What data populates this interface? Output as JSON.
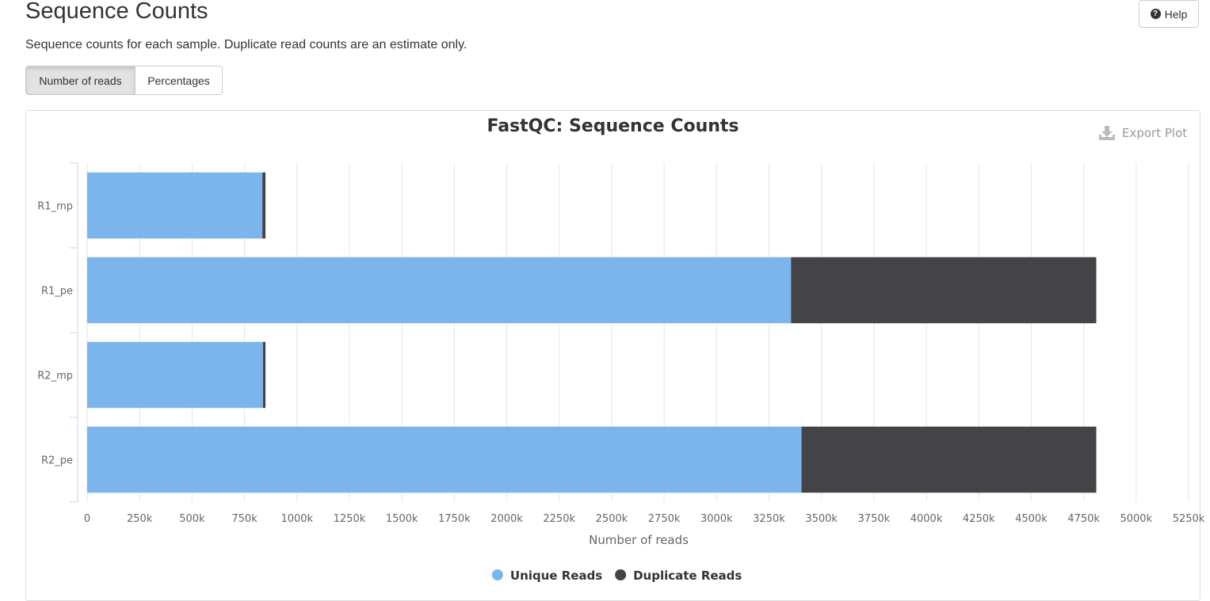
{
  "header": {
    "title": "Sequence Counts",
    "help_label": "Help",
    "description": "Sequence counts for each sample. Duplicate read counts are an estimate only."
  },
  "toggles": [
    {
      "label": "Number of reads",
      "active": true
    },
    {
      "label": "Percentages",
      "active": false
    }
  ],
  "export": {
    "label": "Export Plot"
  },
  "chart_data": {
    "type": "bar",
    "orientation": "horizontal",
    "stacked": true,
    "title": "FastQC: Sequence Counts",
    "xlabel": "Number of reads",
    "ylabel": "",
    "xlim": [
      0,
      5250000
    ],
    "x_ticks": [
      0,
      250000,
      500000,
      750000,
      1000000,
      1250000,
      1500000,
      1750000,
      2000000,
      2250000,
      2500000,
      2750000,
      3000000,
      3250000,
      3500000,
      3750000,
      4000000,
      4250000,
      4500000,
      4750000,
      5000000,
      5250000
    ],
    "x_tick_labels": [
      "0",
      "250k",
      "500k",
      "750k",
      "1000k",
      "1250k",
      "1500k",
      "1750k",
      "2000k",
      "2250k",
      "2500k",
      "2750k",
      "3000k",
      "3250k",
      "3500k",
      "3750k",
      "4000k",
      "4250k",
      "4500k",
      "4750k",
      "5000k",
      "5250k"
    ],
    "categories": [
      "R1_mp",
      "R1_pe",
      "R2_mp",
      "R2_pe"
    ],
    "series": [
      {
        "name": "Unique Reads",
        "color": "#7cb5ec",
        "values": [
          835000,
          3355000,
          838000,
          3405000
        ]
      },
      {
        "name": "Duplicate Reads",
        "color": "#434348",
        "values": [
          15000,
          1455000,
          12000,
          1405000
        ]
      }
    ],
    "grid": true,
    "legend_position": "bottom-center"
  }
}
